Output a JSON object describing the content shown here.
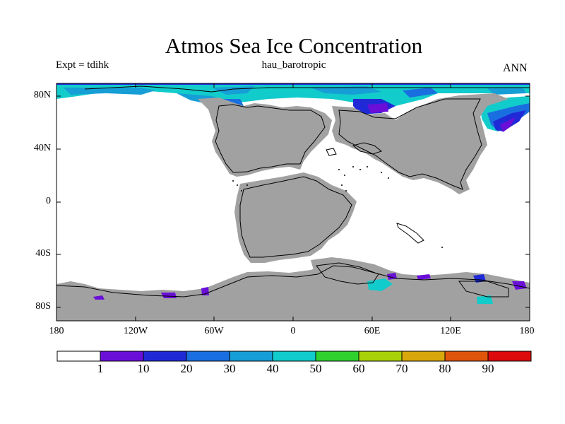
{
  "title": "Atmos Sea Ice Concentration",
  "left_subtitle": "Expt = tdihk",
  "center_subtitle": "hau_barotropic",
  "right_subtitle": "ANN",
  "lat_labels": [
    "80N",
    "40N",
    "0",
    "40S",
    "80S"
  ],
  "lon_labels": [
    "180",
    "120W",
    "60W",
    "0",
    "60E",
    "120E",
    "180"
  ],
  "colorbar": {
    "labels": [
      "1",
      "10",
      "20",
      "30",
      "40",
      "50",
      "60",
      "70",
      "80",
      "90"
    ],
    "colors": [
      "#ffffff",
      "#6a0fd8",
      "#1f2ad6",
      "#1a6fe0",
      "#169ed6",
      "#12cbcb",
      "#2fd12f",
      "#a8d10a",
      "#d8a70c",
      "#e0550c",
      "#dc0a0a"
    ]
  },
  "colors": {
    "land": "#a1a1a1",
    "ocean_no_ice": "#ffffff"
  }
}
